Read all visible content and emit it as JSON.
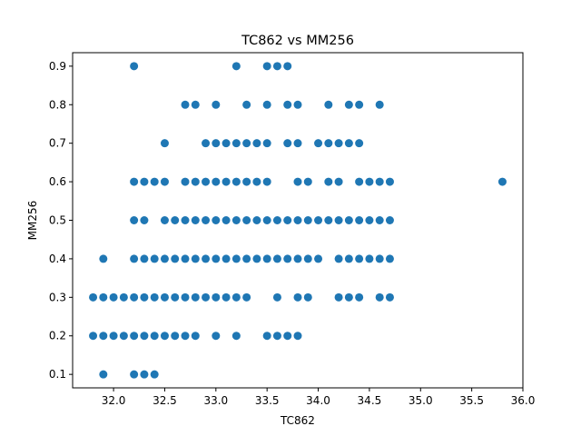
{
  "chart_data": {
    "type": "scatter",
    "title": "TC862 vs MM256",
    "xlabel": "TC862",
    "ylabel": "MM256",
    "xlim": [
      31.6,
      36.0
    ],
    "ylim": [
      0.065,
      0.935
    ],
    "xticks": [
      32.0,
      32.5,
      33.0,
      33.5,
      34.0,
      34.5,
      35.0,
      35.5,
      36.0
    ],
    "xtick_labels": [
      "32.0",
      "32.5",
      "33.0",
      "33.5",
      "34.0",
      "34.5",
      "35.0",
      "35.5",
      "36.0"
    ],
    "yticks": [
      0.1,
      0.2,
      0.3,
      0.4,
      0.5,
      0.6,
      0.7,
      0.8,
      0.9
    ],
    "ytick_labels": [
      "0.1",
      "0.2",
      "0.3",
      "0.4",
      "0.5",
      "0.6",
      "0.7",
      "0.8",
      "0.9"
    ],
    "grid": false,
    "marker_color": "#1f77b4",
    "points": [
      [
        32.2,
        0.9
      ],
      [
        33.5,
        0.9
      ],
      [
        33.6,
        0.9
      ],
      [
        33.7,
        0.9
      ],
      [
        33.2,
        0.9
      ],
      [
        32.7,
        0.8
      ],
      [
        32.8,
        0.8
      ],
      [
        33.0,
        0.8
      ],
      [
        33.3,
        0.8
      ],
      [
        33.5,
        0.8
      ],
      [
        33.7,
        0.8
      ],
      [
        33.8,
        0.8
      ],
      [
        34.1,
        0.8
      ],
      [
        34.3,
        0.8
      ],
      [
        34.4,
        0.8
      ],
      [
        34.6,
        0.8
      ],
      [
        32.5,
        0.7
      ],
      [
        32.9,
        0.7
      ],
      [
        33.0,
        0.7
      ],
      [
        33.1,
        0.7
      ],
      [
        33.2,
        0.7
      ],
      [
        33.3,
        0.7
      ],
      [
        33.4,
        0.7
      ],
      [
        33.5,
        0.7
      ],
      [
        33.7,
        0.7
      ],
      [
        33.8,
        0.7
      ],
      [
        34.0,
        0.7
      ],
      [
        34.1,
        0.7
      ],
      [
        34.2,
        0.7
      ],
      [
        34.3,
        0.7
      ],
      [
        34.4,
        0.7
      ],
      [
        32.2,
        0.6
      ],
      [
        32.3,
        0.6
      ],
      [
        32.4,
        0.6
      ],
      [
        32.5,
        0.6
      ],
      [
        32.7,
        0.6
      ],
      [
        32.8,
        0.6
      ],
      [
        32.9,
        0.6
      ],
      [
        33.0,
        0.6
      ],
      [
        33.1,
        0.6
      ],
      [
        33.2,
        0.6
      ],
      [
        33.3,
        0.6
      ],
      [
        33.4,
        0.6
      ],
      [
        33.5,
        0.6
      ],
      [
        33.8,
        0.6
      ],
      [
        33.9,
        0.6
      ],
      [
        34.1,
        0.6
      ],
      [
        34.2,
        0.6
      ],
      [
        34.4,
        0.6
      ],
      [
        34.5,
        0.6
      ],
      [
        34.6,
        0.6
      ],
      [
        34.7,
        0.6
      ],
      [
        35.8,
        0.6
      ],
      [
        32.2,
        0.5
      ],
      [
        32.3,
        0.5
      ],
      [
        32.5,
        0.5
      ],
      [
        32.6,
        0.5
      ],
      [
        32.7,
        0.5
      ],
      [
        32.8,
        0.5
      ],
      [
        32.9,
        0.5
      ],
      [
        33.0,
        0.5
      ],
      [
        33.1,
        0.5
      ],
      [
        33.2,
        0.5
      ],
      [
        33.3,
        0.5
      ],
      [
        33.4,
        0.5
      ],
      [
        33.5,
        0.5
      ],
      [
        33.6,
        0.5
      ],
      [
        33.7,
        0.5
      ],
      [
        33.8,
        0.5
      ],
      [
        33.9,
        0.5
      ],
      [
        34.0,
        0.5
      ],
      [
        34.1,
        0.5
      ],
      [
        34.2,
        0.5
      ],
      [
        34.3,
        0.5
      ],
      [
        34.4,
        0.5
      ],
      [
        34.5,
        0.5
      ],
      [
        34.6,
        0.5
      ],
      [
        34.7,
        0.5
      ],
      [
        31.9,
        0.4
      ],
      [
        32.2,
        0.4
      ],
      [
        32.3,
        0.4
      ],
      [
        32.4,
        0.4
      ],
      [
        32.5,
        0.4
      ],
      [
        32.6,
        0.4
      ],
      [
        32.7,
        0.4
      ],
      [
        32.8,
        0.4
      ],
      [
        32.9,
        0.4
      ],
      [
        33.0,
        0.4
      ],
      [
        33.1,
        0.4
      ],
      [
        33.2,
        0.4
      ],
      [
        33.3,
        0.4
      ],
      [
        33.4,
        0.4
      ],
      [
        33.5,
        0.4
      ],
      [
        33.6,
        0.4
      ],
      [
        33.7,
        0.4
      ],
      [
        33.8,
        0.4
      ],
      [
        33.9,
        0.4
      ],
      [
        34.0,
        0.4
      ],
      [
        34.2,
        0.4
      ],
      [
        34.3,
        0.4
      ],
      [
        34.4,
        0.4
      ],
      [
        34.5,
        0.4
      ],
      [
        34.6,
        0.4
      ],
      [
        34.7,
        0.4
      ],
      [
        31.8,
        0.3
      ],
      [
        31.9,
        0.3
      ],
      [
        32.0,
        0.3
      ],
      [
        32.1,
        0.3
      ],
      [
        32.2,
        0.3
      ],
      [
        32.3,
        0.3
      ],
      [
        32.4,
        0.3
      ],
      [
        32.5,
        0.3
      ],
      [
        32.6,
        0.3
      ],
      [
        32.7,
        0.3
      ],
      [
        32.8,
        0.3
      ],
      [
        32.9,
        0.3
      ],
      [
        33.0,
        0.3
      ],
      [
        33.1,
        0.3
      ],
      [
        33.2,
        0.3
      ],
      [
        33.3,
        0.3
      ],
      [
        33.6,
        0.3
      ],
      [
        33.8,
        0.3
      ],
      [
        33.9,
        0.3
      ],
      [
        34.2,
        0.3
      ],
      [
        34.3,
        0.3
      ],
      [
        34.4,
        0.3
      ],
      [
        34.6,
        0.3
      ],
      [
        34.7,
        0.3
      ],
      [
        31.8,
        0.2
      ],
      [
        31.9,
        0.2
      ],
      [
        32.0,
        0.2
      ],
      [
        32.1,
        0.2
      ],
      [
        32.2,
        0.2
      ],
      [
        32.3,
        0.2
      ],
      [
        32.4,
        0.2
      ],
      [
        32.5,
        0.2
      ],
      [
        32.6,
        0.2
      ],
      [
        32.7,
        0.2
      ],
      [
        32.8,
        0.2
      ],
      [
        33.0,
        0.2
      ],
      [
        33.2,
        0.2
      ],
      [
        33.5,
        0.2
      ],
      [
        33.6,
        0.2
      ],
      [
        33.7,
        0.2
      ],
      [
        33.8,
        0.2
      ],
      [
        31.9,
        0.1
      ],
      [
        32.2,
        0.1
      ],
      [
        32.3,
        0.1
      ],
      [
        32.4,
        0.1
      ]
    ]
  }
}
